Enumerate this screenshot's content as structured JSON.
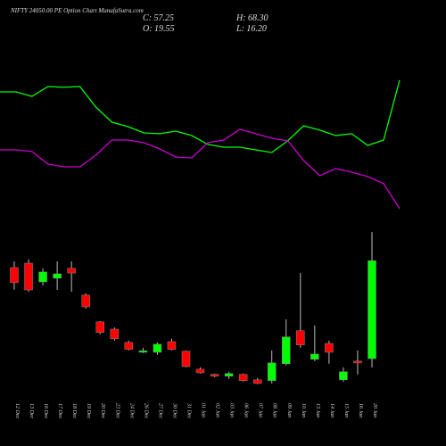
{
  "chart_data": {
    "type": "candlestick",
    "title": "NIFTY 24050.00 PE Option Chart MunafaSutra.com",
    "close_label": "C: 57.25",
    "high_label": "H: 68.30",
    "open_label": "O: 19.55",
    "low_label": "L: 16.20",
    "categories": [
      "12 Dec",
      "13 Dec",
      "16 Dec",
      "17 Dec",
      "18 Dec",
      "19 Dec",
      "20 Dec",
      "23 Dec",
      "24 Dec",
      "26 Dec",
      "27 Dec",
      "30 Dec",
      "31 Dec",
      "01 Jan",
      "02 Jan",
      "03 Jan",
      "06 Jan",
      "07 Jan",
      "08 Jan",
      "09 Jan",
      "10 Jan",
      "13 Jan",
      "14 Jan",
      "15 Jan",
      "16 Jan",
      "20 Jan"
    ],
    "open": [
      54.6,
      56.3,
      49.1,
      50.5,
      54.3,
      44.0,
      33.7,
      30.9,
      25.8,
      22.0,
      22.0,
      26.1,
      22.4,
      15.5,
      13.5,
      12.8,
      13.5,
      11.4,
      11.1,
      17.6,
      30.3,
      19.3,
      25.4,
      11.4,
      18.6,
      19.55
    ],
    "high": [
      57.0,
      57.7,
      54.3,
      57.0,
      57.0,
      44.7,
      34.0,
      31.6,
      26.5,
      23.7,
      25.8,
      27.2,
      22.7,
      16.2,
      13.8,
      14.5,
      13.8,
      12.1,
      22.7,
      34.7,
      52.5,
      32.3,
      26.5,
      16.2,
      22.7,
      68.3
    ],
    "low": [
      46.1,
      45.3,
      47.7,
      46.0,
      45.3,
      38.8,
      28.9,
      26.5,
      22.7,
      21.7,
      21.0,
      22.7,
      16.2,
      13.8,
      12.4,
      11.7,
      10.7,
      9.7,
      10.0,
      16.9,
      23.7,
      18.6,
      17.6,
      10.7,
      13.5,
      16.2
    ],
    "close": [
      48.8,
      46.0,
      52.9,
      52.2,
      52.5,
      39.5,
      29.6,
      27.2,
      23.1,
      22.6,
      25.1,
      23.1,
      16.5,
      14.1,
      12.8,
      13.8,
      11.1,
      10.0,
      17.9,
      27.9,
      24.8,
      21.3,
      22.0,
      14.5,
      17.9,
      57.25
    ],
    "ylim": [
      0,
      80
    ],
    "up_color": "#00ff00",
    "down_color": "#ff0000",
    "indicators": {
      "ylim": [
        0,
        100
      ],
      "series": [
        {
          "color": "#00ff00",
          "values": [
            85.6,
            85.6,
            82.5,
            89.4,
            88.8,
            89.4,
            75,
            64.4,
            61.3,
            56.9,
            56.3,
            58.1,
            55,
            48.8,
            46.9,
            46.9,
            45,
            43.1,
            51.3,
            61.9,
            58.8,
            55,
            56.3,
            48.1,
            51.9,
            93.8
          ]
        },
        {
          "color": "#cc00cc",
          "values": [
            45,
            45,
            43.8,
            35,
            33.1,
            33.1,
            41.3,
            51.9,
            51.9,
            50,
            45.6,
            40,
            39.4,
            50,
            51.9,
            59.4,
            56.3,
            53.1,
            51.3,
            37.5,
            26.9,
            31.9,
            29.4,
            26.3,
            21.3,
            3.8
          ]
        }
      ]
    }
  }
}
